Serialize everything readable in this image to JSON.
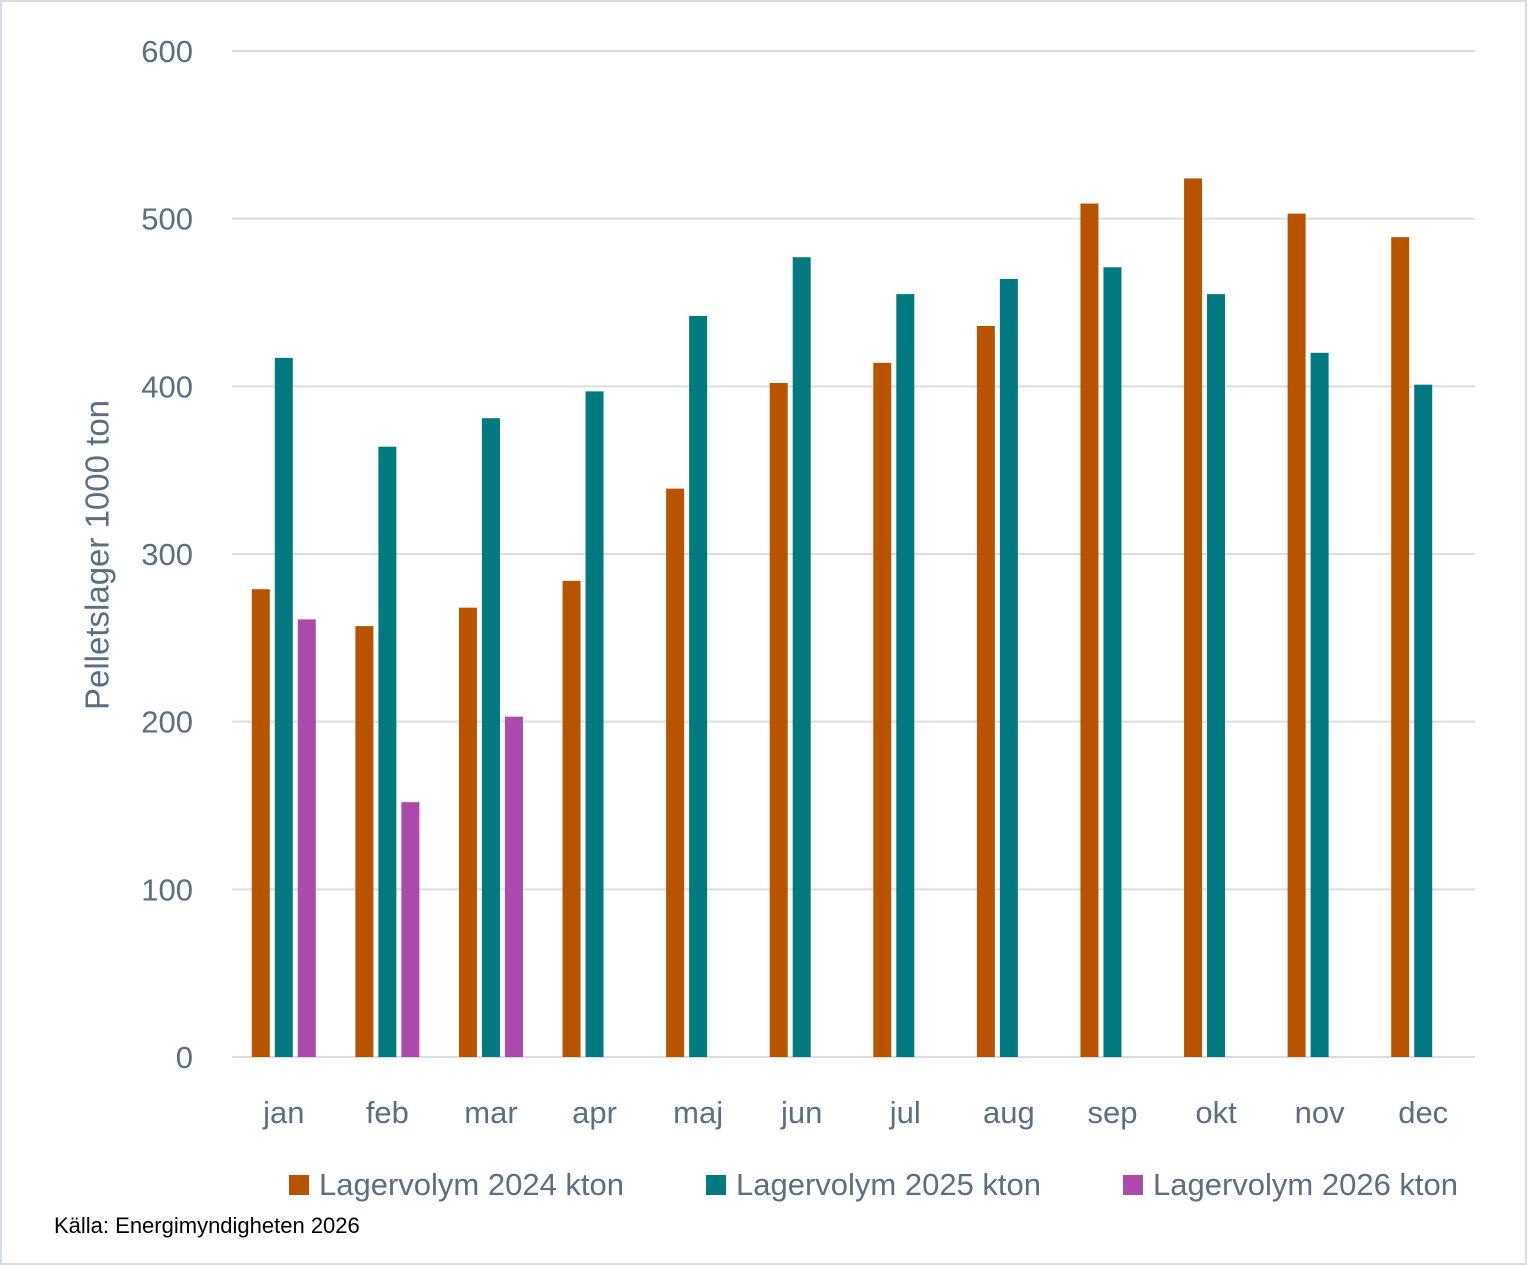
{
  "chart_data": {
    "type": "bar",
    "ylabel": "Pelletslager 1000 ton",
    "xlabel": "",
    "ylim": [
      0,
      600
    ],
    "yticks": [
      0,
      100,
      200,
      300,
      400,
      500,
      600
    ],
    "grid": true,
    "legend_position": "bottom",
    "categories": [
      "jan",
      "feb",
      "mar",
      "apr",
      "maj",
      "jun",
      "jul",
      "aug",
      "sep",
      "okt",
      "nov",
      "dec"
    ],
    "series": [
      {
        "name": "Lagervolym 2024 kton",
        "color": "#b85400",
        "values": [
          279,
          257,
          268,
          284,
          339,
          402,
          414,
          436,
          509,
          524,
          503,
          489
        ]
      },
      {
        "name": "Lagervolym 2025 kton",
        "color": "#007a80",
        "values": [
          417,
          364,
          381,
          397,
          442,
          477,
          455,
          464,
          471,
          455,
          420,
          401
        ]
      },
      {
        "name": "Lagervolym 2026 kton",
        "color": "#ac4aab",
        "values": [
          261,
          152,
          203,
          null,
          null,
          null,
          null,
          null,
          null,
          null,
          null,
          null
        ]
      }
    ]
  },
  "source": "Källa: Energimyndigheten 2026"
}
